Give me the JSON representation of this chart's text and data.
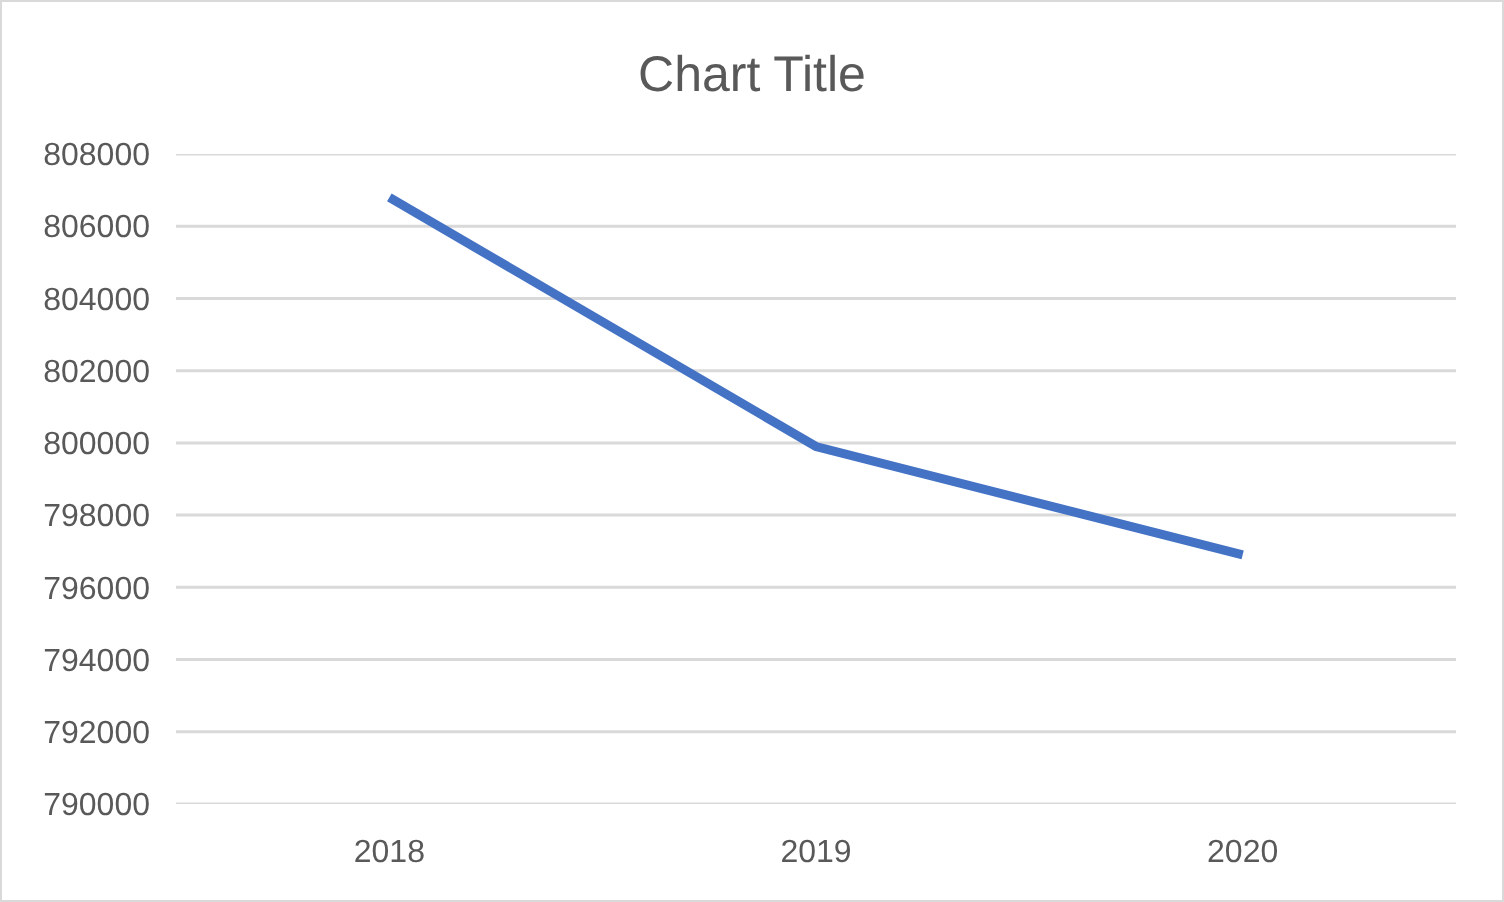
{
  "chart_data": {
    "type": "line",
    "title": "Chart Title",
    "categories": [
      "2018",
      "2019",
      "2020"
    ],
    "series": [
      {
        "color": "#4472c4",
        "values": [
          806800,
          799900,
          796900
        ]
      }
    ],
    "ylim": [
      790000,
      808000
    ],
    "yticks": [
      790000,
      792000,
      794000,
      796000,
      798000,
      800000,
      802000,
      804000,
      806000,
      808000
    ],
    "grid": "y",
    "marker": "none",
    "line_style": "solid"
  }
}
